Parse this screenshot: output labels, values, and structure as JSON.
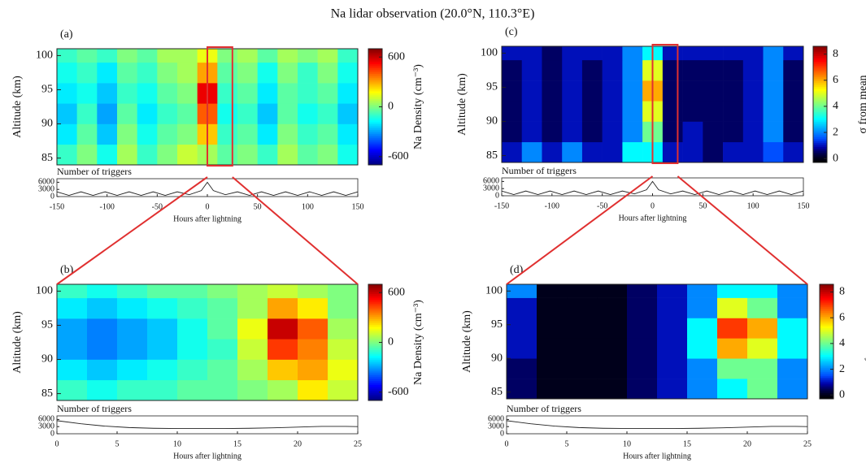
{
  "title": "Na lidar observation (20.0°N, 110.3°E)",
  "chart_data": [
    {
      "type": "heatmap",
      "panel": "(a)",
      "ylabel": "Altitude (km)",
      "ylim": [
        84,
        101
      ],
      "yticks": [
        85,
        90,
        95,
        100
      ],
      "x_edges": [
        -150,
        -130,
        -110,
        -90,
        -70,
        -50,
        -30,
        -10,
        10,
        30,
        50,
        70,
        90,
        110,
        130,
        150
      ],
      "y_edges": [
        84,
        87,
        90,
        93,
        96,
        99,
        101
      ],
      "z": [
        [
          -100,
          0,
          -150,
          50,
          -100,
          0,
          100,
          50,
          -50,
          0,
          -100,
          50,
          -50,
          0,
          -150
        ],
        [
          -200,
          -50,
          -250,
          0,
          -150,
          -50,
          0,
          250,
          -100,
          -50,
          -200,
          0,
          -100,
          -50,
          -200
        ],
        [
          -250,
          -100,
          -300,
          -50,
          -200,
          -100,
          -50,
          400,
          -150,
          -100,
          -250,
          -50,
          -150,
          -100,
          -250
        ],
        [
          -200,
          -150,
          -250,
          -100,
          -150,
          -50,
          0,
          550,
          -100,
          -50,
          -200,
          -50,
          -100,
          -50,
          -200
        ],
        [
          -150,
          -100,
          -200,
          -50,
          -100,
          0,
          50,
          300,
          -50,
          0,
          -150,
          0,
          -100,
          0,
          -150
        ],
        [
          -100,
          -50,
          -100,
          0,
          -50,
          50,
          50,
          150,
          0,
          50,
          -50,
          50,
          0,
          50,
          -100
        ]
      ],
      "colormap": "jet",
      "highlight_x": [
        0,
        25
      ],
      "highlight_color": "#e03030",
      "colorbar": {
        "label": "Na Density (cm⁻³)",
        "lim": [
          -700,
          700
        ],
        "ticks": [
          600,
          0,
          -600
        ]
      },
      "triggers": {
        "label": "Number of triggers",
        "xlabel": "Hours after lightning",
        "xlim": [
          -150,
          150
        ],
        "xticks": [
          -150,
          -100,
          -50,
          0,
          50,
          100,
          150
        ],
        "ylim": [
          0,
          7500
        ],
        "yticks": [
          6000,
          3000,
          0
        ],
        "x": [
          -150,
          -138,
          -126,
          -114,
          -102,
          -90,
          -78,
          -66,
          -54,
          -42,
          -30,
          -18,
          -6,
          0,
          6,
          18,
          30,
          42,
          54,
          66,
          78,
          90,
          102,
          114,
          126,
          138,
          150
        ],
        "values": [
          2000,
          500,
          2000,
          500,
          2000,
          500,
          2000,
          500,
          2000,
          500,
          2000,
          800,
          2500,
          6000,
          2500,
          800,
          2000,
          500,
          2000,
          500,
          2000,
          500,
          2000,
          500,
          2000,
          500,
          2000
        ]
      }
    },
    {
      "type": "heatmap",
      "panel": "(b)",
      "ylabel": "Altitude (km)",
      "ylim": [
        84,
        101
      ],
      "yticks": [
        85,
        90,
        95,
        100
      ],
      "x_edges": [
        0,
        2.5,
        5,
        7.5,
        10,
        12.5,
        15,
        17.5,
        20,
        22.5,
        25
      ],
      "y_edges": [
        84,
        87,
        90,
        93,
        96,
        99,
        101
      ],
      "z": [
        [
          -100,
          -150,
          -100,
          -100,
          -50,
          -50,
          0,
          50,
          200,
          100
        ],
        [
          -200,
          -250,
          -200,
          -150,
          -100,
          -50,
          50,
          250,
          300,
          150
        ],
        [
          -300,
          -350,
          -300,
          -250,
          -150,
          -100,
          100,
          450,
          350,
          100
        ],
        [
          -300,
          -350,
          -300,
          -250,
          -150,
          -50,
          150,
          600,
          400,
          50
        ],
        [
          -200,
          -250,
          -200,
          -150,
          -100,
          -50,
          50,
          300,
          200,
          0
        ],
        [
          -100,
          -150,
          -100,
          -50,
          -50,
          0,
          50,
          100,
          50,
          0
        ]
      ],
      "colormap": "jet",
      "colorbar": {
        "label": "Na Density (cm⁻³)",
        "lim": [
          -700,
          700
        ],
        "ticks": [
          600,
          0,
          -600
        ]
      },
      "triggers": {
        "label": "Number of triggers",
        "xlabel": "Hours after lightning",
        "xlim": [
          0,
          25
        ],
        "xticks": [
          0,
          5,
          10,
          15,
          20,
          25
        ],
        "ylim": [
          0,
          7500
        ],
        "yticks": [
          6000,
          3000,
          0
        ],
        "x": [
          0,
          2,
          4,
          6,
          8,
          10,
          12,
          14,
          16,
          18,
          20,
          22,
          24,
          25
        ],
        "values": [
          5500,
          4200,
          3200,
          2600,
          2300,
          2200,
          2200,
          2200,
          2300,
          2500,
          2800,
          3100,
          3100,
          3000
        ]
      }
    },
    {
      "type": "heatmap",
      "panel": "(c)",
      "ylabel": "Altitude (km)",
      "ylim": [
        84,
        101
      ],
      "yticks": [
        85,
        90,
        95,
        100
      ],
      "x_edges": [
        -150,
        -130,
        -110,
        -90,
        -70,
        -50,
        -30,
        -10,
        10,
        30,
        50,
        70,
        90,
        110,
        130,
        150
      ],
      "y_edges": [
        84,
        87,
        90,
        93,
        96,
        99,
        101
      ],
      "z": [
        [
          1,
          2,
          1,
          2,
          1,
          1,
          3,
          3,
          1,
          1,
          0.5,
          1,
          1,
          1.5,
          1
        ],
        [
          0.5,
          1,
          0.5,
          1,
          0.5,
          1,
          2,
          4,
          0.5,
          1,
          0.5,
          0.5,
          1,
          2,
          0.5
        ],
        [
          0.5,
          1,
          0.5,
          1,
          0.5,
          1,
          2,
          5,
          0.5,
          0.5,
          0.5,
          0.5,
          1,
          2,
          0.5
        ],
        [
          0.5,
          1,
          0.5,
          1,
          0.5,
          1,
          2,
          6,
          0.5,
          0.5,
          0.5,
          0.5,
          1,
          2,
          0.5
        ],
        [
          0.5,
          1,
          0.5,
          1,
          0.5,
          1,
          2,
          5,
          0.5,
          0.5,
          0.5,
          0.5,
          1,
          2,
          0.5
        ],
        [
          1,
          1,
          0.5,
          1,
          1,
          1,
          2,
          3,
          1,
          1,
          1,
          1,
          1,
          2,
          1
        ]
      ],
      "colormap": "jet-black",
      "highlight_x": [
        0,
        25
      ],
      "highlight_color": "#e03030",
      "colorbar": {
        "label": "σ from mean",
        "lim": [
          -0.3,
          8.6
        ],
        "ticks": [
          8,
          6,
          4,
          2,
          0
        ]
      },
      "triggers": {
        "label": "Number of triggers",
        "xlabel": "Hours after lightning",
        "xlim": [
          -150,
          150
        ],
        "xticks": [
          -150,
          -100,
          -50,
          0,
          50,
          100,
          150
        ],
        "ylim": [
          0,
          7500
        ],
        "yticks": [
          6000,
          3000,
          0
        ],
        "x": [
          -150,
          -138,
          -126,
          -114,
          -102,
          -90,
          -78,
          -66,
          -54,
          -42,
          -30,
          -18,
          -6,
          0,
          6,
          18,
          30,
          42,
          54,
          66,
          78,
          90,
          102,
          114,
          126,
          138,
          150
        ],
        "values": [
          2000,
          500,
          2000,
          500,
          2000,
          500,
          2000,
          500,
          2000,
          500,
          2000,
          800,
          2500,
          6000,
          2500,
          800,
          2000,
          500,
          2000,
          500,
          2000,
          500,
          2000,
          500,
          2000,
          500,
          2000
        ]
      }
    },
    {
      "type": "heatmap",
      "panel": "(d)",
      "ylabel": "Altitude (km)",
      "ylim": [
        84,
        101
      ],
      "yticks": [
        85,
        90,
        95,
        100
      ],
      "x_edges": [
        0,
        2.5,
        5,
        7.5,
        10,
        12.5,
        15,
        17.5,
        20,
        22.5,
        25
      ],
      "y_edges": [
        84,
        87,
        90,
        93,
        96,
        99,
        101
      ],
      "z": [
        [
          0.5,
          0,
          0,
          0,
          0.5,
          1,
          2,
          3,
          4,
          2
        ],
        [
          0.5,
          0,
          0,
          0,
          0.5,
          1,
          2,
          4,
          4,
          2
        ],
        [
          1,
          0,
          0,
          0,
          0.5,
          1,
          3,
          6,
          5,
          3
        ],
        [
          1,
          0,
          0,
          0,
          0.5,
          1,
          3,
          7,
          6,
          3
        ],
        [
          1,
          0,
          0,
          0,
          0.5,
          1,
          2,
          5,
          4,
          2
        ],
        [
          2,
          0,
          0,
          0,
          0.5,
          1,
          2,
          3,
          3,
          2
        ]
      ],
      "colormap": "jet-black",
      "colorbar": {
        "label": "σ from mean",
        "lim": [
          -0.3,
          8.6
        ],
        "ticks": [
          8,
          6,
          4,
          2,
          0
        ]
      },
      "triggers": {
        "label": "Number of triggers",
        "xlabel": "Hours after lightning",
        "xlim": [
          0,
          25
        ],
        "xticks": [
          0,
          5,
          10,
          15,
          20,
          25
        ],
        "ylim": [
          0,
          7500
        ],
        "yticks": [
          6000,
          3000,
          0
        ],
        "x": [
          0,
          2,
          4,
          6,
          8,
          10,
          12,
          14,
          16,
          18,
          20,
          22,
          24,
          25
        ],
        "values": [
          5500,
          4200,
          3200,
          2600,
          2300,
          2200,
          2200,
          2200,
          2300,
          2500,
          2800,
          3100,
          3100,
          3000
        ]
      }
    }
  ]
}
